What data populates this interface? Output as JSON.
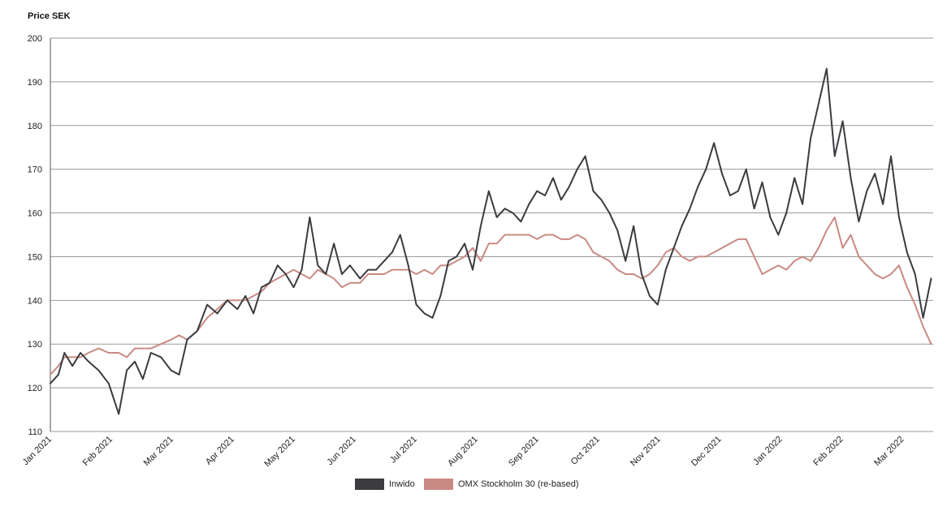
{
  "chart_data": {
    "type": "line",
    "ylabel": "Price SEK",
    "ylim": [
      110,
      200
    ],
    "yticks": [
      110,
      120,
      130,
      140,
      150,
      160,
      170,
      180,
      190,
      200
    ],
    "xticks": [
      "Jan 2021",
      "Feb 2021",
      "Mar 2021",
      "Apr 2021",
      "May 2021",
      "Jun 2021",
      "Jul 2021",
      "Aug 2021",
      "Sep 2021",
      "Oct 2021",
      "Nov 2021",
      "Dec 2021",
      "Jan 2022",
      "Feb 2022",
      "Mar 2022"
    ],
    "grid": "horizontal",
    "legend_position": "bottom",
    "series": [
      {
        "name": "Inwido",
        "color": "#3b3b40",
        "x": [
          "2021-01-01",
          "2021-01-05",
          "2021-01-08",
          "2021-01-12",
          "2021-01-16",
          "2021-01-20",
          "2021-01-25",
          "2021-01-30",
          "2021-02-04",
          "2021-02-08",
          "2021-02-12",
          "2021-02-16",
          "2021-02-20",
          "2021-02-25",
          "2021-03-02",
          "2021-03-06",
          "2021-03-10",
          "2021-03-15",
          "2021-03-20",
          "2021-03-25",
          "2021-03-30",
          "2021-04-04",
          "2021-04-08",
          "2021-04-12",
          "2021-04-16",
          "2021-04-20",
          "2021-04-24",
          "2021-04-28",
          "2021-05-02",
          "2021-05-06",
          "2021-05-10",
          "2021-05-14",
          "2021-05-18",
          "2021-05-22",
          "2021-05-26",
          "2021-05-30",
          "2021-06-04",
          "2021-06-08",
          "2021-06-12",
          "2021-06-16",
          "2021-06-20",
          "2021-06-24",
          "2021-06-28",
          "2021-07-02",
          "2021-07-06",
          "2021-07-10",
          "2021-07-14",
          "2021-07-18",
          "2021-07-22",
          "2021-07-26",
          "2021-07-30",
          "2021-08-03",
          "2021-08-07",
          "2021-08-11",
          "2021-08-15",
          "2021-08-19",
          "2021-08-23",
          "2021-08-27",
          "2021-08-31",
          "2021-09-04",
          "2021-09-08",
          "2021-09-12",
          "2021-09-16",
          "2021-09-20",
          "2021-09-24",
          "2021-09-28",
          "2021-10-02",
          "2021-10-06",
          "2021-10-10",
          "2021-10-14",
          "2021-10-18",
          "2021-10-22",
          "2021-10-26",
          "2021-10-30",
          "2021-11-03",
          "2021-11-07",
          "2021-11-11",
          "2021-11-15",
          "2021-11-19",
          "2021-11-23",
          "2021-11-27",
          "2021-12-01",
          "2021-12-05",
          "2021-12-09",
          "2021-12-13",
          "2021-12-17",
          "2021-12-21",
          "2021-12-25",
          "2021-12-29",
          "2022-01-02",
          "2022-01-06",
          "2022-01-10",
          "2022-01-14",
          "2022-01-18",
          "2022-01-22",
          "2022-01-26",
          "2022-01-30",
          "2022-02-03",
          "2022-02-07",
          "2022-02-11",
          "2022-02-15",
          "2022-02-19",
          "2022-02-23",
          "2022-02-27",
          "2022-03-03",
          "2022-03-07",
          "2022-03-11",
          "2022-03-15"
        ],
        "values": [
          121,
          123,
          128,
          125,
          128,
          126,
          124,
          121,
          114,
          124,
          126,
          122,
          128,
          127,
          124,
          123,
          131,
          133,
          139,
          137,
          140,
          138,
          141,
          137,
          143,
          144,
          148,
          146,
          143,
          147,
          159,
          148,
          146,
          153,
          146,
          148,
          145,
          147,
          147,
          149,
          151,
          155,
          148,
          139,
          137,
          136,
          141,
          149,
          150,
          153,
          147,
          157,
          165,
          159,
          161,
          160,
          158,
          162,
          165,
          164,
          168,
          163,
          166,
          170,
          173,
          165,
          163,
          160,
          156,
          149,
          157,
          146,
          141,
          139,
          147,
          152,
          157,
          161,
          166,
          170,
          176,
          169,
          164,
          165,
          170,
          161,
          167,
          159,
          155,
          160,
          168,
          162,
          177,
          185,
          193,
          173,
          181,
          168,
          158,
          165,
          169,
          162,
          173,
          159,
          151,
          146,
          136,
          145
        ]
      },
      {
        "name": "OMX Stockholm 30 (re-based)",
        "color": "#c98a83",
        "x": [
          "2021-01-01",
          "2021-01-05",
          "2021-01-08",
          "2021-01-12",
          "2021-01-16",
          "2021-01-20",
          "2021-01-25",
          "2021-01-30",
          "2021-02-04",
          "2021-02-08",
          "2021-02-12",
          "2021-02-16",
          "2021-02-20",
          "2021-02-25",
          "2021-03-02",
          "2021-03-06",
          "2021-03-10",
          "2021-03-15",
          "2021-03-20",
          "2021-03-25",
          "2021-03-30",
          "2021-04-04",
          "2021-04-08",
          "2021-04-12",
          "2021-04-16",
          "2021-04-20",
          "2021-04-24",
          "2021-04-28",
          "2021-05-02",
          "2021-05-06",
          "2021-05-10",
          "2021-05-14",
          "2021-05-18",
          "2021-05-22",
          "2021-05-26",
          "2021-05-30",
          "2021-06-04",
          "2021-06-08",
          "2021-06-12",
          "2021-06-16",
          "2021-06-20",
          "2021-06-24",
          "2021-06-28",
          "2021-07-02",
          "2021-07-06",
          "2021-07-10",
          "2021-07-14",
          "2021-07-18",
          "2021-07-22",
          "2021-07-26",
          "2021-07-30",
          "2021-08-03",
          "2021-08-07",
          "2021-08-11",
          "2021-08-15",
          "2021-08-19",
          "2021-08-23",
          "2021-08-27",
          "2021-08-31",
          "2021-09-04",
          "2021-09-08",
          "2021-09-12",
          "2021-09-16",
          "2021-09-20",
          "2021-09-24",
          "2021-09-28",
          "2021-10-02",
          "2021-10-06",
          "2021-10-10",
          "2021-10-14",
          "2021-10-18",
          "2021-10-22",
          "2021-10-26",
          "2021-10-30",
          "2021-11-03",
          "2021-11-07",
          "2021-11-11",
          "2021-11-15",
          "2021-11-19",
          "2021-11-23",
          "2021-11-27",
          "2021-12-01",
          "2021-12-05",
          "2021-12-09",
          "2021-12-13",
          "2021-12-17",
          "2021-12-21",
          "2021-12-25",
          "2021-12-29",
          "2022-01-02",
          "2022-01-06",
          "2022-01-10",
          "2022-01-14",
          "2022-01-18",
          "2022-01-22",
          "2022-01-26",
          "2022-01-30",
          "2022-02-03",
          "2022-02-07",
          "2022-02-11",
          "2022-02-15",
          "2022-02-19",
          "2022-02-23",
          "2022-02-27",
          "2022-03-03",
          "2022-03-07",
          "2022-03-11",
          "2022-03-15"
        ],
        "values": [
          123,
          125,
          127,
          127,
          127,
          128,
          129,
          128,
          128,
          127,
          129,
          129,
          129,
          130,
          131,
          132,
          131,
          133,
          136,
          138,
          140,
          140,
          140,
          141,
          142,
          144,
          145,
          146,
          147,
          146,
          145,
          147,
          146,
          145,
          143,
          144,
          144,
          146,
          146,
          146,
          147,
          147,
          147,
          146,
          147,
          146,
          148,
          148,
          149,
          150,
          152,
          149,
          153,
          153,
          155,
          155,
          155,
          155,
          154,
          155,
          155,
          154,
          154,
          155,
          154,
          151,
          150,
          149,
          147,
          146,
          146,
          145,
          146,
          148,
          151,
          152,
          150,
          149,
          150,
          150,
          151,
          152,
          153,
          154,
          154,
          150,
          146,
          147,
          148,
          147,
          149,
          150,
          149,
          152,
          156,
          159,
          152,
          155,
          150,
          148,
          146,
          145,
          146,
          148,
          143,
          139,
          134,
          130
        ]
      }
    ]
  }
}
